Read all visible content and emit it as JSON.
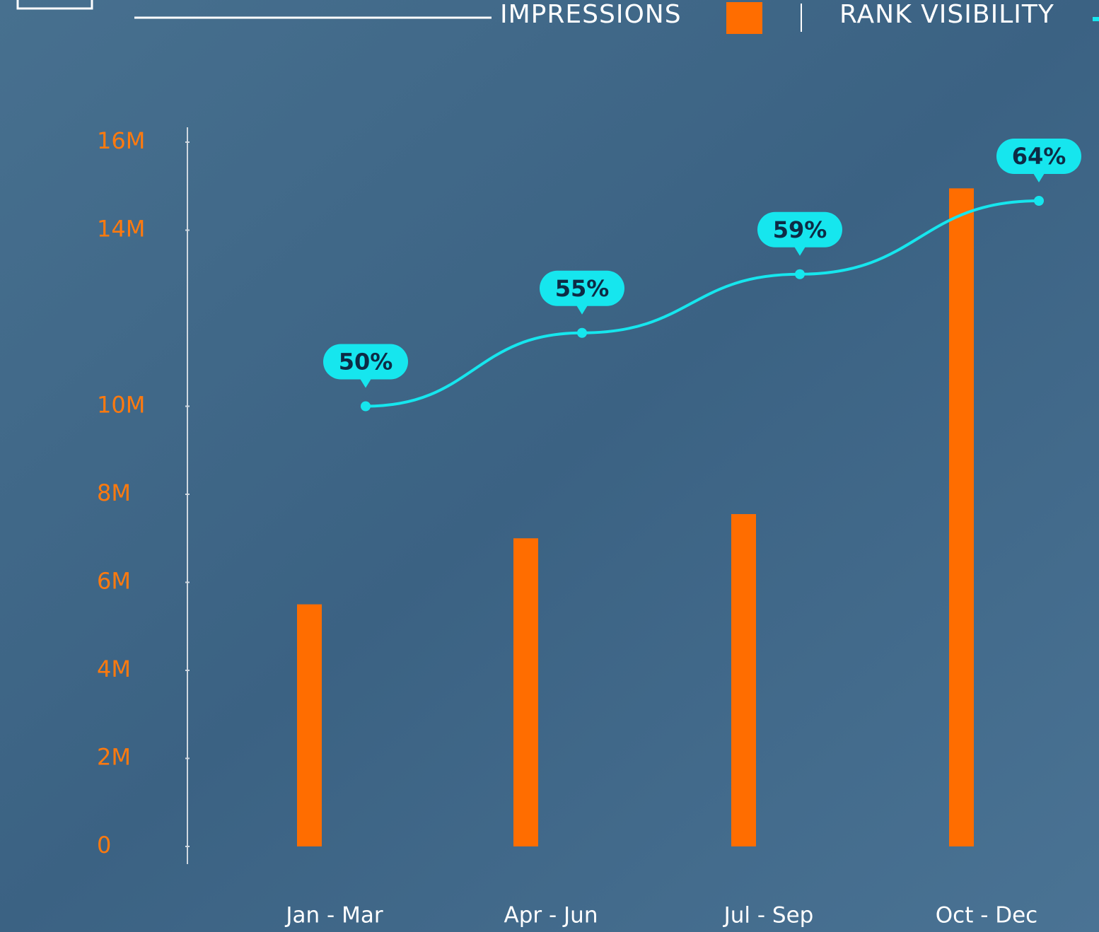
{
  "chart_data": {
    "type": "bar",
    "categories": [
      "Jan - Mar",
      "Apr - Jun",
      "Jul - Sep",
      "Oct - Dec"
    ],
    "ylim": [
      0,
      16000000
    ],
    "yticks": [
      0,
      {
        "value": 2000000,
        "label": "2M"
      },
      {
        "value": 4000000,
        "label": "4M"
      },
      {
        "value": 6000000,
        "label": "6M"
      },
      {
        "value": 8000000,
        "label": "8M"
      },
      {
        "value": 10000000,
        "label": "10M"
      },
      {
        "value": 14000000,
        "label": "14M"
      },
      {
        "value": 16000000,
        "label": "16M"
      }
    ],
    "y2lim": [
      20,
      68
    ],
    "series": [
      {
        "name": "IMPRESSIONS",
        "type": "bar",
        "color": "#ff6d00",
        "values": [
          5500000,
          7000000,
          7550000,
          14950000
        ]
      },
      {
        "name": "RANK VISIBILITY",
        "type": "line",
        "axis": "y2",
        "color": "#16e6ee",
        "values": [
          50,
          55,
          59,
          64
        ],
        "value_labels": [
          "50%",
          "55%",
          "59%",
          "64%"
        ]
      }
    ]
  }
}
